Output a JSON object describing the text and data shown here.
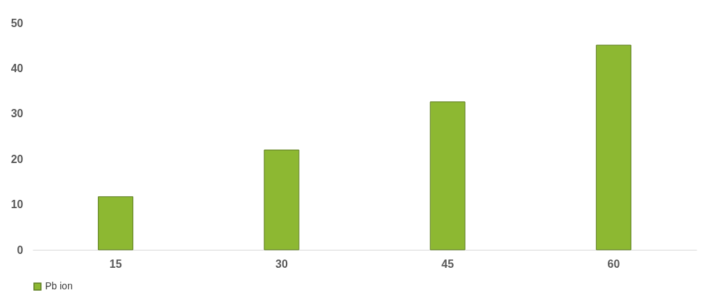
{
  "chart_data": {
    "type": "bar",
    "categories": [
      "15",
      "30",
      "45",
      "60"
    ],
    "series": [
      {
        "name": "Pb ion",
        "color": "#8db832",
        "values": [
          11.7,
          22,
          32.6,
          45.1
        ]
      }
    ],
    "ylim": [
      0,
      50
    ],
    "yticks": [
      0,
      10,
      20,
      30,
      40,
      50
    ],
    "grid": false,
    "legend": "bottom"
  }
}
